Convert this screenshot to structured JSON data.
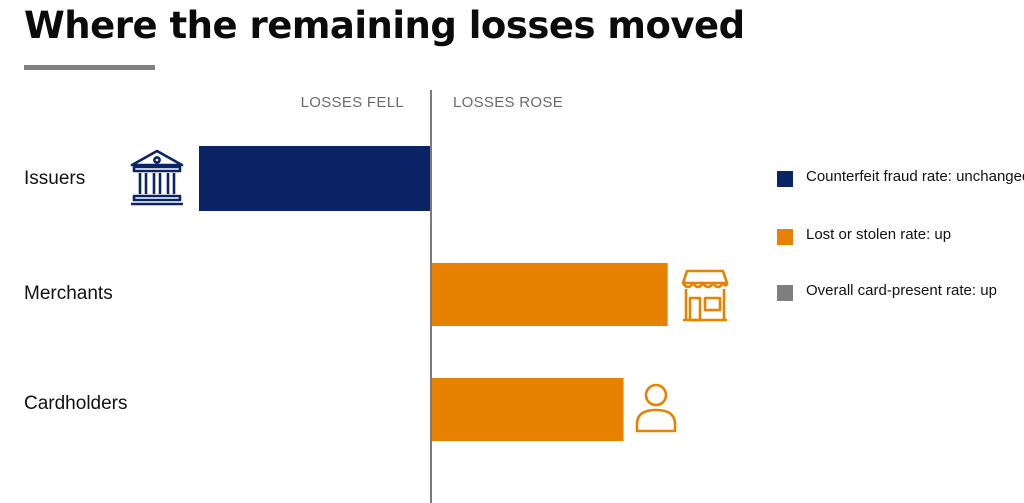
{
  "title": "Where the remaining losses moved",
  "chart_data": {
    "type": "bar",
    "orientation": "horizontal",
    "headers": {
      "left": "LOSSES FELL",
      "right": "LOSSES ROSE"
    },
    "categories": [
      "Issuers",
      "Merchants",
      "Cardholders"
    ],
    "values": [
      -1.0,
      1.02,
      0.83
    ],
    "bar_colors": [
      "#0a2466",
      "#e68200",
      "#e68200"
    ],
    "xlim": [
      -1.8,
      1.8
    ],
    "legend": {
      "placement": "right",
      "items": [
        {
          "label": "Counterfeit fraud rate: unchanged",
          "color": "#0a2466"
        },
        {
          "label": "Lost or stolen rate: up",
          "color": "#e68200"
        },
        {
          "label": "Overall card-present rate: up",
          "color": "#7f7f7f"
        }
      ]
    },
    "icons": [
      "bank-icon",
      "storefront-icon",
      "person-icon"
    ]
  }
}
